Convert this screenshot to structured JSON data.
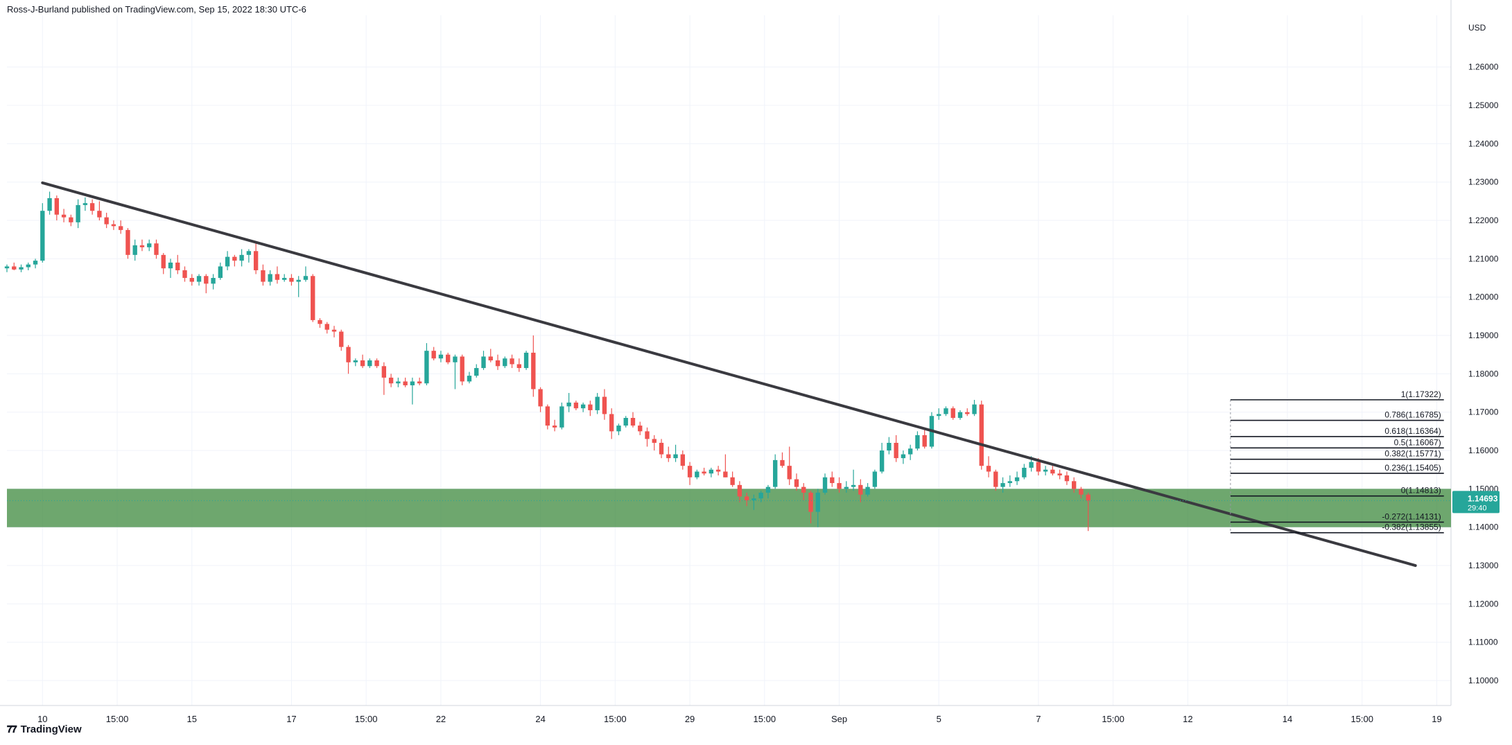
{
  "header": {
    "text": "Ross-J-Burland published on TradingView.com, Sep 15, 2022 18:30 UTC-6"
  },
  "footer": {
    "brand": "TradingView",
    "logo_icon": "tradingview-logo-icon"
  },
  "colors": {
    "up": "#26a69a",
    "down": "#ef5350",
    "trendline": "#3a3a40",
    "zone": "#3e8a3e",
    "grid": "#f0f3fa",
    "fib": "#131722",
    "price_tag": "#26a69a"
  },
  "chart_data": {
    "type": "candlestick",
    "instrument_currency": "USD",
    "ylim": [
      1.0935,
      1.2735
    ],
    "y_ticks": [
      1.26,
      1.25,
      1.24,
      1.23,
      1.22,
      1.21,
      1.2,
      1.19,
      1.18,
      1.17,
      1.16,
      1.15,
      1.14,
      1.13,
      1.12,
      1.11,
      1.1
    ],
    "y_tick_labels": [
      "1.26000",
      "1.25000",
      "1.24000",
      "1.23000",
      "1.22000",
      "1.21000",
      "1.20000",
      "1.19000",
      "1.18000",
      "1.17000",
      "1.16000",
      "1.15000",
      "1.14000",
      "1.13000",
      "1.12000",
      "1.11000",
      "1.10000"
    ],
    "x_range": [
      0,
      203
    ],
    "x_ticks": [
      {
        "x": 5,
        "label": "10"
      },
      {
        "x": 15.5,
        "label": "15:00"
      },
      {
        "x": 26,
        "label": "15"
      },
      {
        "x": 40,
        "label": "17"
      },
      {
        "x": 50.5,
        "label": "15:00"
      },
      {
        "x": 61,
        "label": "22"
      },
      {
        "x": 75,
        "label": "24"
      },
      {
        "x": 85.5,
        "label": "15:00"
      },
      {
        "x": 96,
        "label": "29"
      },
      {
        "x": 106.5,
        "label": "15:00"
      },
      {
        "x": 117,
        "label": "Sep"
      },
      {
        "x": 131,
        "label": "5"
      },
      {
        "x": 145,
        "label": "7"
      },
      {
        "x": 155.5,
        "label": "15:00"
      },
      {
        "x": 166,
        "label": "12"
      },
      {
        "x": 180,
        "label": "14"
      },
      {
        "x": 190.5,
        "label": "15:00"
      },
      {
        "x": 201,
        "label": "19"
      }
    ],
    "candles": [
      [
        1.2075,
        1.2085,
        1.2065,
        1.208
      ],
      [
        1.208,
        1.209,
        1.207,
        1.2072
      ],
      [
        1.2072,
        1.2085,
        1.2065,
        1.2078
      ],
      [
        1.2078,
        1.209,
        1.207,
        1.2085
      ],
      [
        1.2085,
        1.21,
        1.2075,
        1.2095
      ],
      [
        1.2095,
        1.2245,
        1.209,
        1.2225
      ],
      [
        1.2225,
        1.2275,
        1.2215,
        1.2258
      ],
      [
        1.2258,
        1.2265,
        1.22,
        1.2215
      ],
      [
        1.2215,
        1.223,
        1.2195,
        1.2208
      ],
      [
        1.2208,
        1.2215,
        1.2185,
        1.2195
      ],
      [
        1.2195,
        1.2255,
        1.218,
        1.224
      ],
      [
        1.224,
        1.226,
        1.2225,
        1.2245
      ],
      [
        1.2245,
        1.2255,
        1.2215,
        1.2225
      ],
      [
        1.2225,
        1.225,
        1.22,
        1.2208
      ],
      [
        1.2208,
        1.222,
        1.218,
        1.219
      ],
      [
        1.219,
        1.22,
        1.2175,
        1.2185
      ],
      [
        1.2185,
        1.22,
        1.2165,
        1.2175
      ],
      [
        1.2175,
        1.218,
        1.21,
        1.211
      ],
      [
        1.211,
        1.215,
        1.2095,
        1.2135
      ],
      [
        1.2135,
        1.215,
        1.212,
        1.213
      ],
      [
        1.213,
        1.215,
        1.212,
        1.214
      ],
      [
        1.214,
        1.215,
        1.21,
        1.211
      ],
      [
        1.211,
        1.2115,
        1.206,
        1.2075
      ],
      [
        1.2075,
        1.21,
        1.205,
        1.209
      ],
      [
        1.209,
        1.211,
        1.206,
        1.207
      ],
      [
        1.207,
        1.208,
        1.204,
        1.205
      ],
      [
        1.205,
        1.206,
        1.203,
        1.204
      ],
      [
        1.204,
        1.206,
        1.203,
        1.2055
      ],
      [
        1.2055,
        1.206,
        1.201,
        1.2035
      ],
      [
        1.2035,
        1.206,
        1.202,
        1.205
      ],
      [
        1.205,
        1.209,
        1.2045,
        1.208
      ],
      [
        1.208,
        1.212,
        1.207,
        1.2105
      ],
      [
        1.2105,
        1.211,
        1.208,
        1.2095
      ],
      [
        1.2095,
        1.2125,
        1.208,
        1.211
      ],
      [
        1.211,
        1.2125,
        1.209,
        1.212
      ],
      [
        1.212,
        1.214,
        1.206,
        1.207
      ],
      [
        1.207,
        1.2085,
        1.203,
        1.204
      ],
      [
        1.204,
        1.207,
        1.203,
        1.206
      ],
      [
        1.206,
        1.208,
        1.2035,
        1.2045
      ],
      [
        1.2045,
        1.206,
        1.204,
        1.205
      ],
      [
        1.205,
        1.206,
        1.203,
        1.204
      ],
      [
        1.204,
        1.2055,
        1.2,
        1.2045
      ],
      [
        1.2045,
        1.208,
        1.204,
        1.2055
      ],
      [
        1.2055,
        1.206,
        1.1935,
        1.194
      ],
      [
        1.194,
        1.1945,
        1.192,
        1.193
      ],
      [
        1.193,
        1.1935,
        1.1905,
        1.1915
      ],
      [
        1.1915,
        1.1925,
        1.1895,
        1.191
      ],
      [
        1.191,
        1.1915,
        1.186,
        1.187
      ],
      [
        1.187,
        1.1875,
        1.18,
        1.183
      ],
      [
        1.183,
        1.184,
        1.182,
        1.1835
      ],
      [
        1.1835,
        1.185,
        1.1815,
        1.182
      ],
      [
        1.182,
        1.184,
        1.1815,
        1.1835
      ],
      [
        1.1835,
        1.184,
        1.1815,
        1.182
      ],
      [
        1.182,
        1.183,
        1.1745,
        1.179
      ],
      [
        1.179,
        1.18,
        1.1765,
        1.1775
      ],
      [
        1.1775,
        1.179,
        1.1765,
        1.178
      ],
      [
        1.178,
        1.179,
        1.1765,
        1.177
      ],
      [
        1.177,
        1.179,
        1.172,
        1.178
      ],
      [
        1.178,
        1.179,
        1.177,
        1.1775
      ],
      [
        1.1775,
        1.188,
        1.177,
        1.186
      ],
      [
        1.186,
        1.187,
        1.1835,
        1.184
      ],
      [
        1.184,
        1.186,
        1.183,
        1.185
      ],
      [
        1.185,
        1.1855,
        1.1825,
        1.183
      ],
      [
        1.183,
        1.185,
        1.176,
        1.1845
      ],
      [
        1.1845,
        1.185,
        1.177,
        1.178
      ],
      [
        1.178,
        1.1805,
        1.1775,
        1.1795
      ],
      [
        1.1795,
        1.1825,
        1.179,
        1.1815
      ],
      [
        1.1815,
        1.186,
        1.181,
        1.1845
      ],
      [
        1.1845,
        1.1865,
        1.183,
        1.1835
      ],
      [
        1.1835,
        1.185,
        1.181,
        1.182
      ],
      [
        1.182,
        1.1845,
        1.1815,
        1.184
      ],
      [
        1.184,
        1.185,
        1.1815,
        1.1825
      ],
      [
        1.1825,
        1.184,
        1.1805,
        1.1815
      ],
      [
        1.1815,
        1.186,
        1.181,
        1.1855
      ],
      [
        1.1855,
        1.19,
        1.174,
        1.176
      ],
      [
        1.176,
        1.1765,
        1.17,
        1.1715
      ],
      [
        1.1715,
        1.172,
        1.1655,
        1.1665
      ],
      [
        1.1665,
        1.168,
        1.165,
        1.166
      ],
      [
        1.166,
        1.1725,
        1.1655,
        1.1715
      ],
      [
        1.1715,
        1.175,
        1.17,
        1.1725
      ],
      [
        1.1725,
        1.173,
        1.1705,
        1.171
      ],
      [
        1.171,
        1.1725,
        1.17,
        1.172
      ],
      [
        1.172,
        1.173,
        1.169,
        1.1705
      ],
      [
        1.1705,
        1.175,
        1.1695,
        1.174
      ],
      [
        1.174,
        1.176,
        1.168,
        1.1695
      ],
      [
        1.1695,
        1.171,
        1.163,
        1.165
      ],
      [
        1.165,
        1.167,
        1.164,
        1.1665
      ],
      [
        1.1665,
        1.169,
        1.166,
        1.1685
      ],
      [
        1.1685,
        1.17,
        1.166,
        1.1665
      ],
      [
        1.1665,
        1.1675,
        1.164,
        1.165
      ],
      [
        1.165,
        1.166,
        1.161,
        1.163
      ],
      [
        1.163,
        1.164,
        1.16,
        1.162
      ],
      [
        1.162,
        1.163,
        1.158,
        1.159
      ],
      [
        1.159,
        1.161,
        1.157,
        1.158
      ],
      [
        1.158,
        1.1615,
        1.157,
        1.159
      ],
      [
        1.159,
        1.16,
        1.155,
        1.156
      ],
      [
        1.156,
        1.157,
        1.151,
        1.153
      ],
      [
        1.153,
        1.155,
        1.1525,
        1.1545
      ],
      [
        1.1545,
        1.1555,
        1.1535,
        1.154
      ],
      [
        1.154,
        1.1555,
        1.153,
        1.155
      ],
      [
        1.155,
        1.156,
        1.1535,
        1.1545
      ],
      [
        1.1545,
        1.159,
        1.153,
        1.153
      ],
      [
        1.153,
        1.1545,
        1.1505,
        1.151
      ],
      [
        1.151,
        1.152,
        1.1465,
        1.148
      ],
      [
        1.148,
        1.149,
        1.1455,
        1.147
      ],
      [
        1.147,
        1.1485,
        1.1445,
        1.1475
      ],
      [
        1.1475,
        1.1495,
        1.1465,
        1.149
      ],
      [
        1.149,
        1.151,
        1.1475,
        1.1505
      ],
      [
        1.1505,
        1.159,
        1.15,
        1.1575
      ],
      [
        1.1575,
        1.1595,
        1.1555,
        1.156
      ],
      [
        1.156,
        1.161,
        1.151,
        1.1525
      ],
      [
        1.1525,
        1.154,
        1.1495,
        1.1505
      ],
      [
        1.1505,
        1.1515,
        1.147,
        1.149
      ],
      [
        1.149,
        1.1495,
        1.141,
        1.144
      ],
      [
        1.144,
        1.15,
        1.14,
        1.149
      ],
      [
        1.149,
        1.154,
        1.1485,
        1.153
      ],
      [
        1.153,
        1.1545,
        1.1505,
        1.1515
      ],
      [
        1.1515,
        1.153,
        1.149,
        1.15
      ],
      [
        1.15,
        1.152,
        1.149,
        1.1505
      ],
      [
        1.1505,
        1.155,
        1.1495,
        1.151
      ],
      [
        1.151,
        1.1525,
        1.1465,
        1.1485
      ],
      [
        1.1485,
        1.1515,
        1.148,
        1.1505
      ],
      [
        1.1505,
        1.155,
        1.15,
        1.1545
      ],
      [
        1.1545,
        1.162,
        1.154,
        1.16
      ],
      [
        1.16,
        1.1635,
        1.159,
        1.162
      ],
      [
        1.162,
        1.164,
        1.157,
        1.158
      ],
      [
        1.158,
        1.16,
        1.1565,
        1.159
      ],
      [
        1.159,
        1.1615,
        1.1575,
        1.1605
      ],
      [
        1.1605,
        1.165,
        1.16,
        1.164
      ],
      [
        1.164,
        1.166,
        1.1605,
        1.161
      ],
      [
        1.161,
        1.17,
        1.1605,
        1.169
      ],
      [
        1.169,
        1.171,
        1.168,
        1.1695
      ],
      [
        1.1695,
        1.1715,
        1.169,
        1.171
      ],
      [
        1.171,
        1.1715,
        1.168,
        1.1685
      ],
      [
        1.1685,
        1.1705,
        1.168,
        1.17
      ],
      [
        1.17,
        1.171,
        1.169,
        1.1695
      ],
      [
        1.1695,
        1.1732,
        1.169,
        1.172
      ],
      [
        1.172,
        1.173,
        1.155,
        1.156
      ],
      [
        1.156,
        1.1585,
        1.153,
        1.1545
      ],
      [
        1.1545,
        1.155,
        1.1495,
        1.1505
      ],
      [
        1.1505,
        1.153,
        1.149,
        1.1515
      ],
      [
        1.1515,
        1.1535,
        1.1505,
        1.152
      ],
      [
        1.152,
        1.1545,
        1.151,
        1.153
      ],
      [
        1.153,
        1.1565,
        1.1525,
        1.1555
      ],
      [
        1.1555,
        1.1585,
        1.1545,
        1.157
      ],
      [
        1.157,
        1.158,
        1.1535,
        1.1545
      ],
      [
        1.1545,
        1.156,
        1.1535,
        1.155
      ],
      [
        1.155,
        1.156,
        1.1535,
        1.154
      ],
      [
        1.154,
        1.155,
        1.1525,
        1.1535
      ],
      [
        1.1535,
        1.1545,
        1.151,
        1.152
      ],
      [
        1.152,
        1.153,
        1.149,
        1.15
      ],
      [
        1.15,
        1.1505,
        1.1475,
        1.1485
      ],
      [
        1.1485,
        1.149,
        1.139,
        1.1469
      ]
    ],
    "trendline": [
      {
        "x": 5,
        "price": 1.2298
      },
      {
        "x": 198,
        "price": 1.13
      }
    ],
    "zone": {
      "top": 1.15,
      "bottom": 1.14
    },
    "fibonacci": {
      "x_start": 172,
      "x_end": 202,
      "levels": [
        {
          "price": 1.17322,
          "label": "1(1.17322)"
        },
        {
          "price": 1.16785,
          "label": "0.786(1.16785)"
        },
        {
          "price": 1.16364,
          "label": "0.618(1.16364)"
        },
        {
          "price": 1.16067,
          "label": "0.5(1.16067)"
        },
        {
          "price": 1.15771,
          "label": "0.382(1.15771)"
        },
        {
          "price": 1.15405,
          "label": "0.236(1.15405)"
        },
        {
          "price": 1.14813,
          "label": "0(1.14813)"
        },
        {
          "price": 1.14131,
          "label": "-0.272(1.14131)"
        },
        {
          "price": 1.13855,
          "label": "-0.382(1.13855)"
        }
      ]
    },
    "last_price": {
      "value": 1.14693,
      "label": "1.14693",
      "countdown": "29:40"
    }
  }
}
